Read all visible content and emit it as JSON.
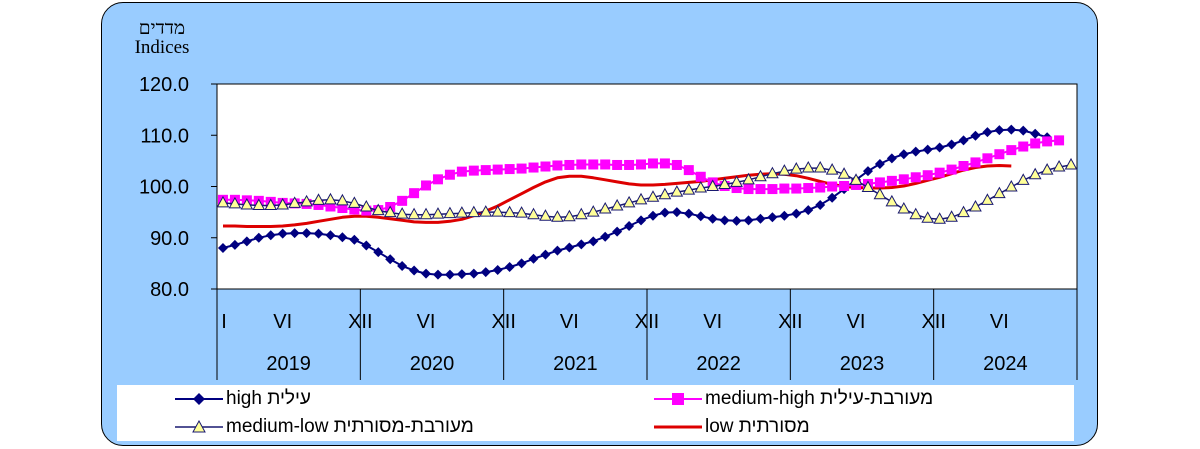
{
  "chart_data": {
    "type": "line",
    "ylabel_he": "מדדים",
    "ylabel_en": "Indices",
    "ylim": [
      80,
      120
    ],
    "yticks": [
      "80.0",
      "90.0",
      "100.0",
      "110.0",
      "120.0"
    ],
    "month_labels": [
      "I",
      "VI",
      "XII",
      "VI",
      "XII",
      "VI",
      "XII",
      "VI",
      "XII",
      "VI",
      "XII",
      "VI"
    ],
    "years": [
      "2019",
      "2020",
      "2021",
      "2022",
      "2023",
      "2024"
    ],
    "grid": false,
    "legend_position": "bottom",
    "series": [
      {
        "name": "high עילית",
        "color": "#000080",
        "marker": "diamond",
        "values": [
          88.0,
          88.6,
          89.3,
          90.0,
          90.5,
          90.8,
          90.9,
          90.9,
          90.8,
          90.5,
          90.1,
          89.6,
          88.5,
          87.2,
          85.8,
          84.5,
          83.6,
          83.0,
          82.8,
          82.8,
          82.9,
          83.0,
          83.3,
          83.7,
          84.3,
          85.0,
          85.9,
          86.7,
          87.5,
          88.1,
          88.7,
          89.3,
          90.2,
          91.2,
          92.3,
          93.4,
          94.3,
          94.9,
          95.0,
          94.7,
          94.2,
          93.7,
          93.4,
          93.3,
          93.4,
          93.7,
          94.0,
          94.3,
          94.7,
          95.4,
          96.4,
          97.8,
          99.5,
          101.3,
          103.0,
          104.4,
          105.5,
          106.3,
          106.8,
          107.2,
          107.6,
          108.2,
          109.0,
          109.9,
          110.6,
          111.0,
          111.1,
          110.9,
          110.3,
          109.6
        ]
      },
      {
        "name": "medium-high מעורבת-עילית",
        "color": "#ff00ff",
        "marker": "square",
        "values": [
          97.4,
          97.4,
          97.3,
          97.2,
          97.0,
          96.8,
          96.7,
          96.6,
          96.4,
          96.1,
          95.8,
          95.5,
          95.3,
          95.4,
          96.0,
          97.2,
          98.7,
          100.2,
          101.4,
          102.3,
          102.9,
          103.1,
          103.2,
          103.3,
          103.4,
          103.5,
          103.7,
          103.9,
          104.1,
          104.2,
          104.3,
          104.3,
          104.3,
          104.2,
          104.2,
          104.3,
          104.5,
          104.5,
          104.2,
          103.2,
          101.9,
          100.8,
          100.1,
          99.7,
          99.5,
          99.5,
          99.5,
          99.6,
          99.6,
          99.7,
          99.8,
          100.0,
          100.1,
          100.3,
          100.5,
          100.8,
          101.1,
          101.4,
          101.8,
          102.2,
          102.7,
          103.3,
          104.0,
          104.7,
          105.5,
          106.3,
          107.1,
          107.8,
          108.4,
          108.8,
          109.0
        ]
      },
      {
        "name": "medium-low מעורבת-מסורתית",
        "color": "#191970",
        "marker": "triangle",
        "values": [
          96.8,
          96.6,
          96.4,
          96.3,
          96.3,
          96.4,
          96.7,
          97.0,
          97.3,
          97.4,
          97.2,
          96.7,
          96.0,
          95.3,
          94.9,
          94.6,
          94.5,
          94.5,
          94.6,
          94.7,
          94.8,
          94.9,
          95.0,
          95.0,
          94.9,
          94.8,
          94.5,
          94.2,
          94.0,
          94.1,
          94.5,
          95.0,
          95.6,
          96.2,
          96.8,
          97.4,
          97.9,
          98.4,
          98.9,
          99.3,
          99.7,
          100.0,
          100.4,
          100.8,
          101.3,
          101.9,
          102.5,
          103.0,
          103.4,
          103.6,
          103.6,
          103.2,
          102.4,
          101.2,
          99.8,
          98.4,
          97.0,
          95.6,
          94.5,
          93.8,
          93.6,
          94.0,
          94.9,
          96.0,
          97.3,
          98.6,
          99.9,
          101.2,
          102.3,
          103.2,
          103.8,
          104.2
        ]
      },
      {
        "name": "low מסורתית",
        "color": "#dd0000",
        "marker": "none",
        "values": [
          92.3,
          92.3,
          92.2,
          92.2,
          92.2,
          92.3,
          92.5,
          92.8,
          93.2,
          93.6,
          94.0,
          94.2,
          94.2,
          94.0,
          93.7,
          93.4,
          93.1,
          93.0,
          93.0,
          93.2,
          93.6,
          94.3,
          95.2,
          96.2,
          97.4,
          98.6,
          99.8,
          100.9,
          101.7,
          102.0,
          102.0,
          101.7,
          101.3,
          100.9,
          100.5,
          100.3,
          100.3,
          100.4,
          100.6,
          100.8,
          101.0,
          101.3,
          101.6,
          101.9,
          102.2,
          102.4,
          102.5,
          102.4,
          102.1,
          101.6,
          101.0,
          100.4,
          100.0,
          99.8,
          99.7,
          99.7,
          99.8,
          100.1,
          100.6,
          101.2,
          101.8,
          102.5,
          103.2,
          103.7,
          104.0,
          104.1,
          104.0
        ]
      }
    ]
  },
  "legend": {
    "items": [
      {
        "name": "high עילית",
        "label": "high עילית"
      },
      {
        "name": "medium-high מעורבת-עילית",
        "label": "medium-high מעורבת-עילית"
      },
      {
        "name": "medium-low מעורבת-מסורתית",
        "label": "medium-low מעורבת-מסורתית"
      },
      {
        "name": "low מסורתית",
        "label": "low מסורתית"
      }
    ]
  }
}
